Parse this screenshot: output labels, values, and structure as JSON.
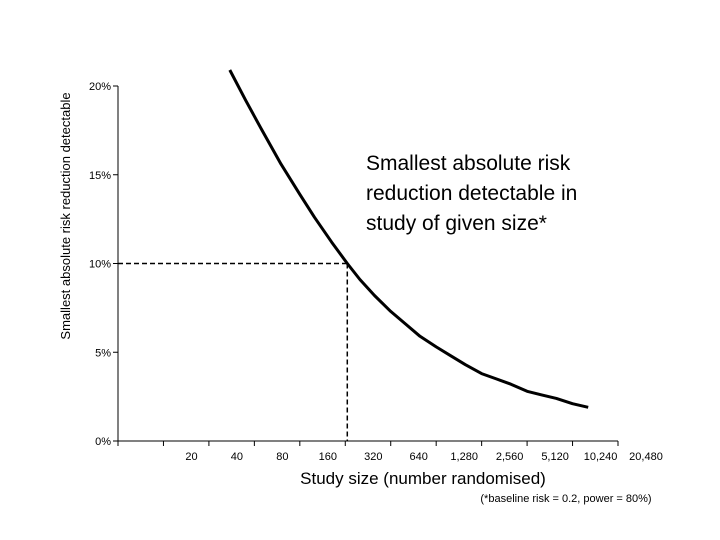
{
  "chart_data": {
    "type": "line",
    "ylabel": "Smallest absolute risk reduction detectable",
    "xlabel": "Study size (number randomised)",
    "footnote": "(*baseline risk = 0.2, power = 80%)",
    "annotation_lines": [
      "Smallest absolute risk",
      "reduction detectable in",
      "study of given size*"
    ],
    "x_scale": "log2",
    "x_ticks": [
      10,
      20,
      40,
      80,
      160,
      320,
      640,
      1280,
      2560,
      5120,
      10240,
      20480
    ],
    "x_tick_labels": [
      "",
      "20",
      "40",
      "80",
      "160",
      "320",
      "640",
      "1,280",
      "2,560",
      "5,120",
      "10,240",
      "20,480"
    ],
    "ylim": [
      0,
      20
    ],
    "y_ticks": [
      0,
      5,
      10,
      15,
      20
    ],
    "y_tick_labels": [
      "0%",
      "5%",
      "10%",
      "15%",
      "20%"
    ],
    "grid": false,
    "series": [
      {
        "x": [
          55,
          70,
          90,
          120,
          160,
          200,
          260,
          330,
          400,
          500,
          640,
          800,
          1000,
          1280,
          1600,
          2000,
          2560,
          3200,
          4000,
          5120,
          6400,
          8000,
          10240,
          13000
        ],
        "y": [
          20.9,
          19.2,
          17.5,
          15.6,
          13.9,
          12.6,
          11.2,
          10.0,
          9.1,
          8.2,
          7.3,
          6.6,
          5.9,
          5.3,
          4.8,
          4.3,
          3.8,
          3.5,
          3.2,
          2.8,
          2.6,
          2.4,
          2.1,
          1.9
        ]
      }
    ],
    "reference_point": {
      "x": 330,
      "y": 10
    }
  }
}
